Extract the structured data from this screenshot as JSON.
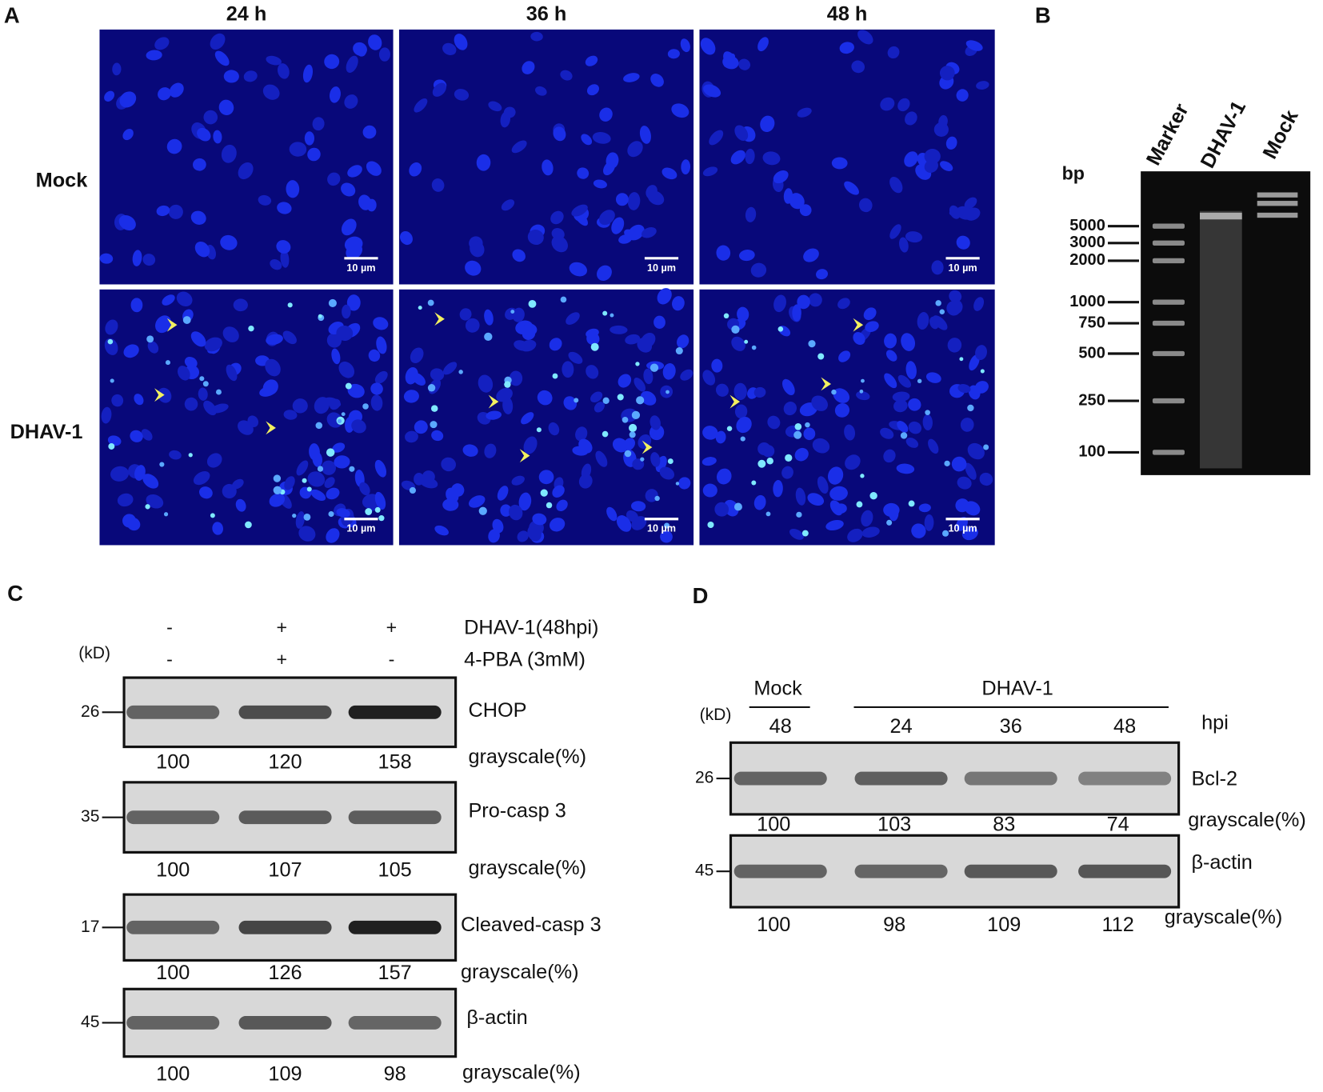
{
  "panels": {
    "A": {
      "label": "A",
      "columns": [
        "24 h",
        "36 h",
        "48 h"
      ],
      "rows": [
        "Mock",
        "DHAV-1"
      ],
      "scale_bar": "10 µm"
    },
    "B": {
      "label": "B",
      "lanes": [
        "Marker",
        "DHAV-1",
        "Mock"
      ],
      "unit": "bp",
      "ladder": [
        5000,
        3000,
        2000,
        1000,
        750,
        500,
        250,
        100
      ]
    },
    "C": {
      "label": "C",
      "unit": "(kD)",
      "grayscale_label": "grayscale(%)",
      "treatments": [
        {
          "name": "DHAV-1(48hpi)",
          "signs": [
            "-",
            "+",
            "+"
          ]
        },
        {
          "name": "4-PBA (3mM)",
          "signs": [
            "-",
            "+",
            "-"
          ]
        }
      ],
      "blots": [
        {
          "name": "CHOP",
          "kd": 26,
          "grayscale": [
            100,
            120,
            158
          ]
        },
        {
          "name": "Pro-casp 3",
          "kd": 35,
          "grayscale": [
            100,
            107,
            105
          ]
        },
        {
          "name": "Cleaved-casp 3",
          "kd": 17,
          "grayscale": [
            100,
            126,
            157
          ]
        },
        {
          "name": "β-actin",
          "kd": 45,
          "grayscale": [
            100,
            109,
            98
          ]
        }
      ]
    },
    "D": {
      "label": "D",
      "unit": "(kD)",
      "grayscale_label": "grayscale(%)",
      "groups": [
        "Mock",
        "DHAV-1"
      ],
      "time_unit": "hpi",
      "times": [
        48,
        24,
        36,
        48
      ],
      "blots": [
        {
          "name": "Bcl-2",
          "kd": 26,
          "grayscale": [
            100,
            103,
            83,
            74
          ]
        },
        {
          "name": "β-actin",
          "kd": 45,
          "grayscale": [
            100,
            98,
            109,
            112
          ]
        }
      ]
    }
  }
}
